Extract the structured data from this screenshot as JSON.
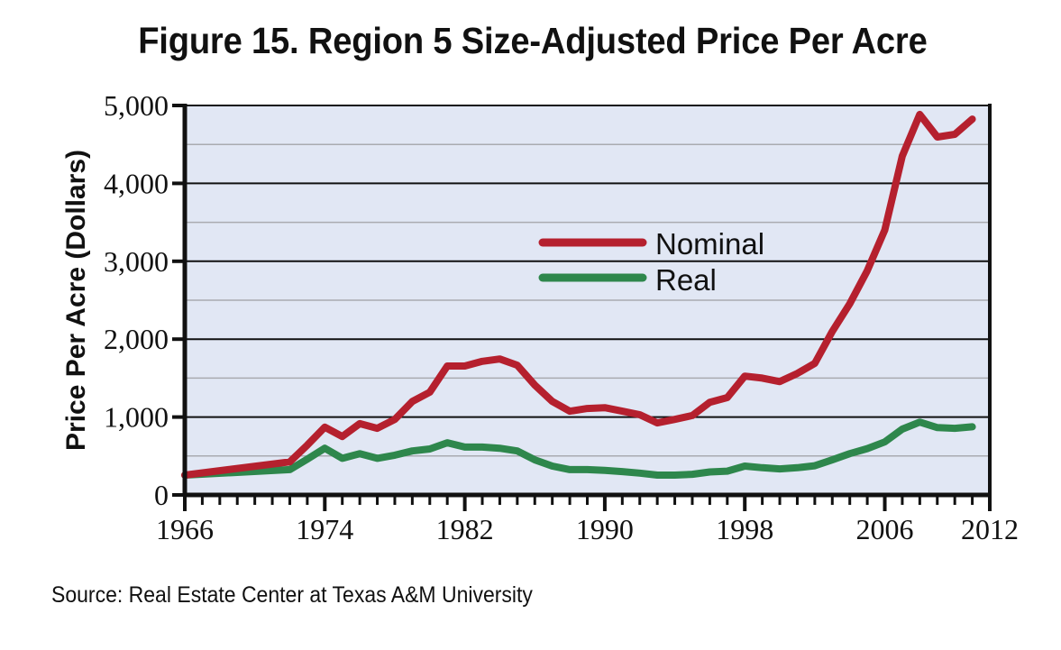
{
  "chart_data": {
    "type": "line",
    "title": "Figure 15. Region 5 Size-Adjusted Price Per Acre",
    "xlabel": "",
    "ylabel": "Price Per Acre (Dollars)",
    "source": "Source: Real Estate Center at Texas A&M University",
    "xlim": [
      1966,
      2012
    ],
    "ylim": [
      0,
      5000
    ],
    "x_tick_labels": [
      "1966",
      "1974",
      "1982",
      "1990",
      "1998",
      "2006",
      "2012"
    ],
    "x_tick_values": [
      1966,
      1974,
      1982,
      1990,
      1998,
      2006,
      2012
    ],
    "y_tick_labels": [
      "0",
      "1,000",
      "2,000",
      "3,000",
      "4,000",
      "5,000"
    ],
    "y_tick_values": [
      0,
      1000,
      2000,
      3000,
      4000,
      5000
    ],
    "y_minor_gridlines": [
      500,
      1500,
      2500,
      3500,
      4500
    ],
    "grid": true,
    "legend_position": "center",
    "plot_background": "#e1e7f4",
    "x": [
      1966,
      1972,
      1973,
      1974,
      1975,
      1976,
      1977,
      1978,
      1979,
      1980,
      1981,
      1982,
      1983,
      1984,
      1985,
      1986,
      1987,
      1988,
      1989,
      1990,
      1991,
      1992,
      1993,
      1994,
      1995,
      1996,
      1997,
      1998,
      1999,
      2000,
      2001,
      2002,
      2003,
      2004,
      2005,
      2006,
      2007,
      2008,
      2009,
      2010,
      2011
    ],
    "series": [
      {
        "name": "Nominal",
        "color": "#b5202e",
        "values": [
          255,
          425,
          640,
          870,
          750,
          915,
          855,
          970,
          1200,
          1320,
          1655,
          1655,
          1715,
          1745,
          1665,
          1410,
          1200,
          1075,
          1110,
          1120,
          1075,
          1030,
          925,
          970,
          1020,
          1190,
          1250,
          1525,
          1500,
          1455,
          1560,
          1690,
          2100,
          2455,
          2880,
          3400,
          4350,
          4885,
          4595,
          4630,
          4825
        ]
      },
      {
        "name": "Real",
        "color": "#2e874c",
        "values": [
          255,
          325,
          460,
          600,
          470,
          530,
          470,
          510,
          565,
          590,
          670,
          615,
          615,
          600,
          565,
          450,
          370,
          325,
          325,
          315,
          300,
          280,
          255,
          255,
          265,
          295,
          305,
          370,
          350,
          335,
          350,
          375,
          450,
          530,
          595,
          680,
          845,
          935,
          865,
          855,
          875
        ]
      }
    ]
  }
}
